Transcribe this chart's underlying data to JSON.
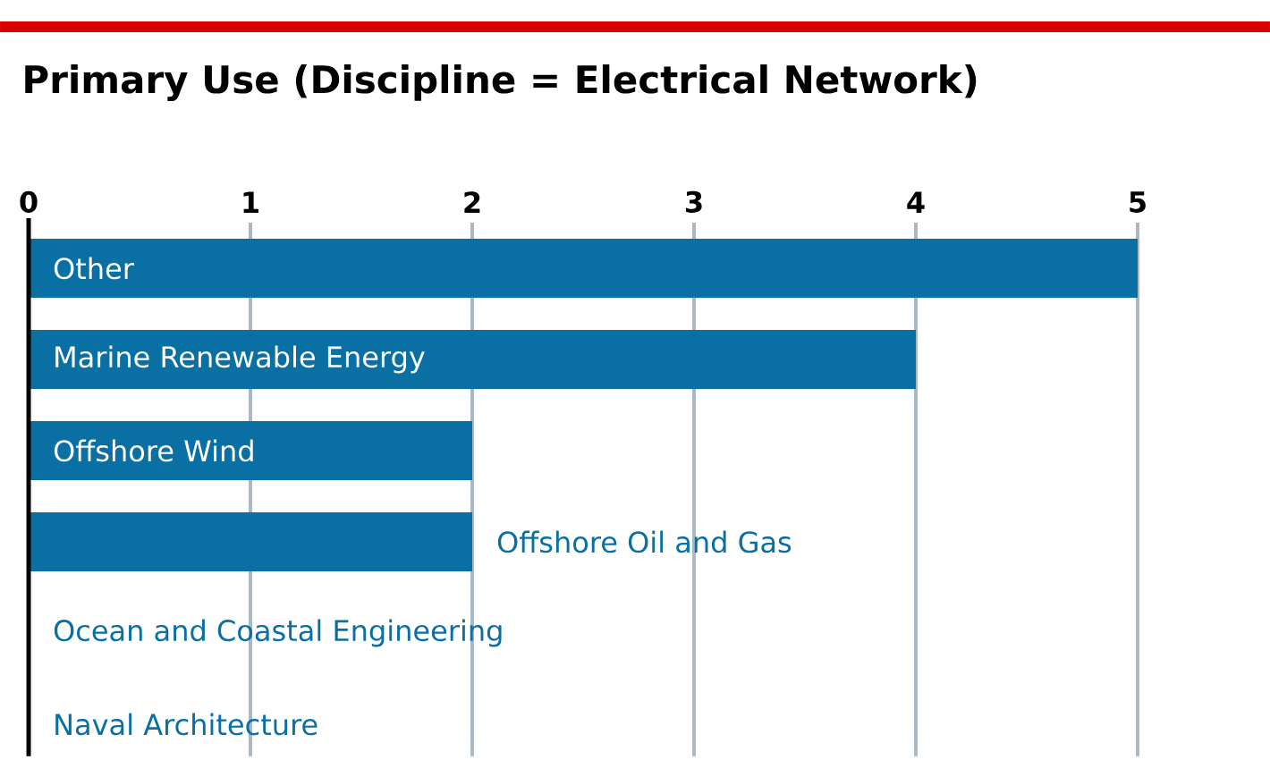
{
  "chart_data": {
    "type": "bar",
    "orientation": "horizontal",
    "title": "Primary Use (Discipline = Electrical Network)",
    "categories": [
      "Other",
      "Marine Renewable Energy",
      "Offshore Wind",
      "Offshore Oil and Gas",
      "Ocean and Coastal Engineering",
      "Naval Architecture"
    ],
    "values": [
      5,
      4,
      2,
      2,
      0,
      0
    ],
    "color": "#0a6fa3",
    "xlim": [
      0,
      5
    ],
    "xticks": [
      0,
      1,
      2,
      3,
      4,
      5
    ],
    "grid": "x"
  }
}
